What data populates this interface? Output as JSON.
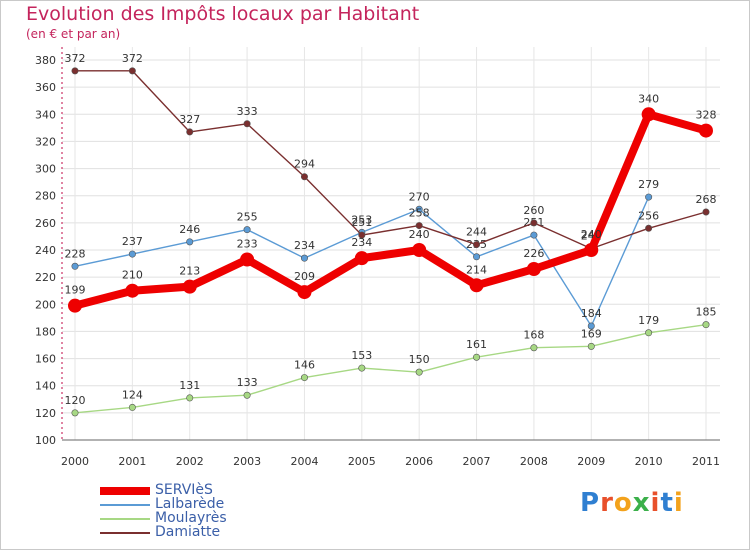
{
  "header": {
    "title": "Evolution des Impôts locaux par Habitant",
    "subtitle": "(en € et par an)"
  },
  "logo": {
    "letters": [
      "P",
      "r",
      "o",
      "x",
      "i",
      "t",
      "i"
    ],
    "colors": [
      "#2f7fd1",
      "#e8502b",
      "#f3a21c",
      "#3bb04a",
      "#e8502b",
      "#2f7fd1",
      "#f3a21c"
    ]
  },
  "chart_data": {
    "type": "line",
    "x": [
      "2000",
      "2001",
      "2002",
      "2003",
      "2004",
      "2005",
      "2006",
      "2007",
      "2008",
      "2009",
      "2010",
      "2011"
    ],
    "ylim": [
      100,
      380
    ],
    "yticks": [
      "100",
      "120",
      "140",
      "160",
      "180",
      "200",
      "220",
      "240",
      "260",
      "280",
      "300",
      "320",
      "340",
      "360",
      "380"
    ],
    "grid": true,
    "legend_position": "bottom-left",
    "series": [
      {
        "name": "SERVIèS",
        "color": "#ee0000",
        "values": [
          199,
          210,
          213,
          233,
          209,
          234,
          240,
          214,
          226,
          240,
          340,
          328
        ],
        "labels": [
          "199",
          "210",
          "213",
          "233",
          "209",
          "234",
          "240",
          "214",
          "226",
          "240",
          "340",
          "328"
        ]
      },
      {
        "name": "Lalbarède",
        "color": "#5b9bd5",
        "values": [
          228,
          237,
          246,
          255,
          234,
          253,
          270,
          235,
          251,
          184,
          279,
          null
        ],
        "labels": [
          "228",
          "237",
          "246",
          "255",
          "234",
          "253",
          "270",
          "235",
          "251",
          "184",
          "279",
          ""
        ]
      },
      {
        "name": "Moulayrès",
        "color": "#a7d884",
        "values": [
          120,
          124,
          131,
          133,
          146,
          153,
          150,
          161,
          168,
          169,
          179,
          185
        ],
        "labels": [
          "120",
          "124",
          "131",
          "133",
          "146",
          "153",
          "150",
          "161",
          "168",
          "169",
          "179",
          "185"
        ]
      },
      {
        "name": "Damiatte",
        "color": "#7a2f2f",
        "values": [
          372,
          372,
          327,
          333,
          294,
          251,
          258,
          244,
          260,
          241,
          256,
          268
        ],
        "labels": [
          "372",
          "372",
          "327",
          "333",
          "294",
          "251",
          "258",
          "244",
          "260",
          "241",
          "256",
          "268"
        ]
      }
    ]
  }
}
